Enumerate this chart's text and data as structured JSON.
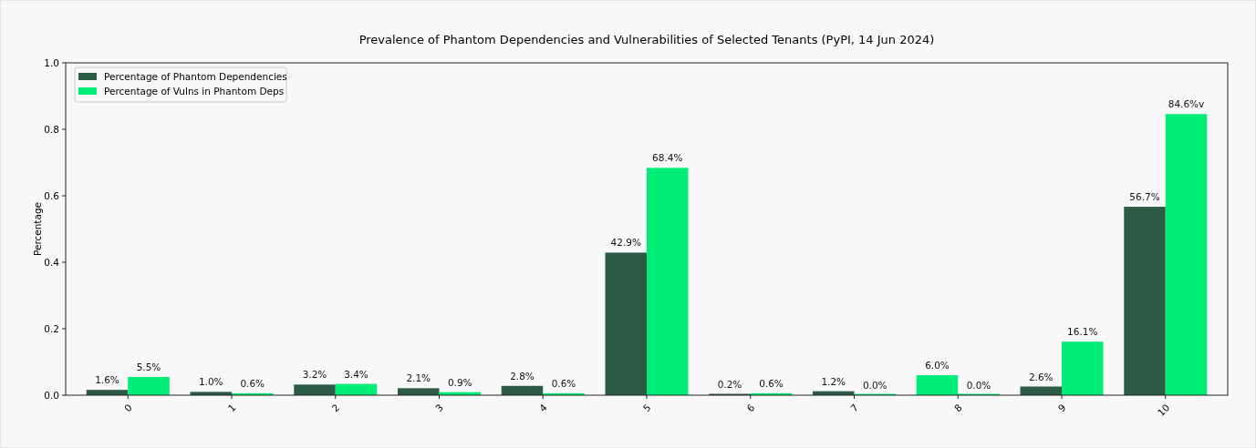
{
  "chart_data": {
    "type": "bar",
    "title": "Prevalence of Phantom Dependencies and Vulnerabilities of Selected Tenants (PyPI, 14 Jun 2024)",
    "ylabel": "Percentage",
    "categories": [
      "0",
      "1",
      "2",
      "3",
      "4",
      "5",
      "6",
      "7",
      "8",
      "9",
      "10"
    ],
    "series": [
      {
        "name": "Percentage of Phantom Dependencies",
        "color": "#2e5b46",
        "colors": [
          "#2e5b46",
          "#2e5b46",
          "#2e5b46",
          "#2e5b46",
          "#2e5b46",
          "#2e5b46",
          "#2e5b46",
          "#2e5b46",
          "#00ee77",
          "#2e5b46",
          "#2e5b46"
        ],
        "values": [
          0.016,
          0.01,
          0.032,
          0.021,
          0.028,
          0.429,
          0.002,
          0.012,
          0.06,
          0.026,
          0.567
        ],
        "value_labels": [
          "1.6%",
          "1.0%",
          "3.2%",
          "2.1%",
          "2.8%",
          "42.9%",
          "0.2%",
          "1.2%",
          "6.0%",
          "2.6%",
          "56.7%"
        ]
      },
      {
        "name": "Percentage of Vulns in Phantom Deps",
        "color": "#00ee77",
        "values": [
          0.055,
          0.006,
          0.034,
          0.009,
          0.006,
          0.684,
          0.006,
          0.0,
          0.0,
          0.161,
          0.846
        ],
        "value_labels": [
          "5.5%",
          "0.6%",
          "3.4%",
          "0.9%",
          "0.6%",
          "68.4%",
          "0.6%",
          "0.0%",
          "0.0%",
          "16.1%",
          "84.6%v"
        ]
      }
    ],
    "ylim": [
      0,
      1
    ],
    "yticks": [
      {
        "value": 0,
        "label": "0.0"
      },
      {
        "value": 0.2,
        "label": "0.2"
      },
      {
        "value": 0.4,
        "label": "0.4"
      },
      {
        "value": 0.6,
        "label": "0.6"
      },
      {
        "value": 0.8,
        "label": "0.8"
      },
      {
        "value": 1,
        "label": "1.0"
      }
    ],
    "legend": "top left"
  }
}
